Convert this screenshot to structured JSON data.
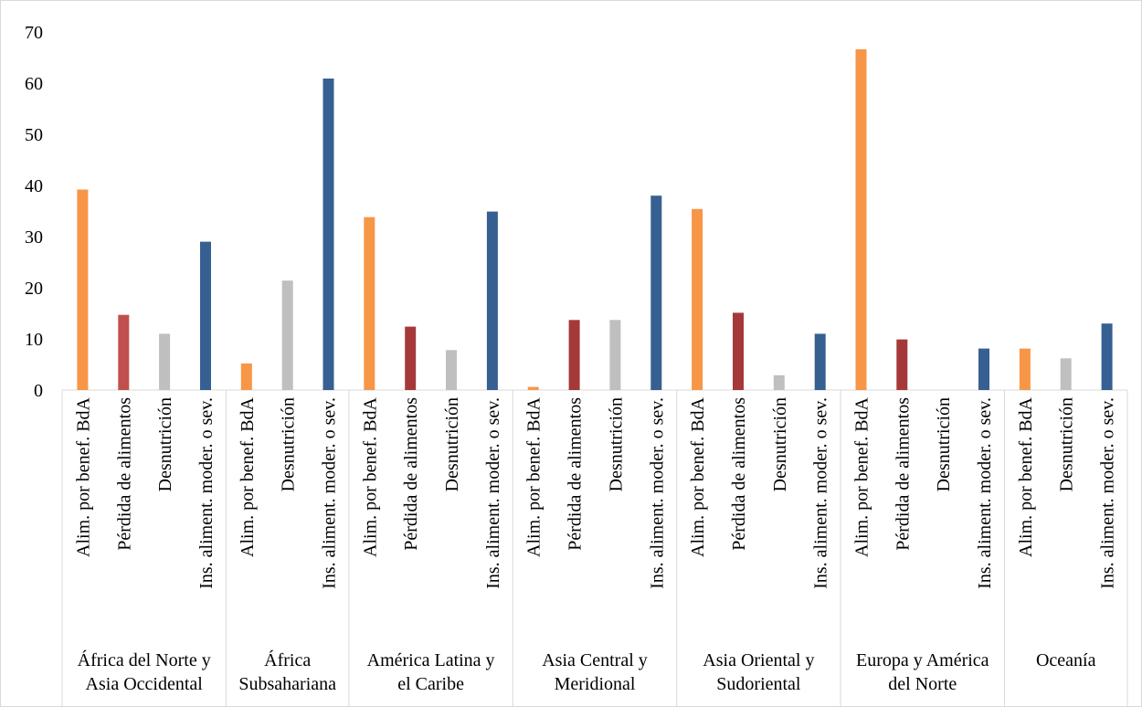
{
  "chart_data": {
    "type": "bar",
    "ylim": [
      0,
      70
    ],
    "yticks": [
      "0",
      "10",
      "20",
      "30",
      "40",
      "50",
      "60",
      "70"
    ],
    "grid": false,
    "legend": "none",
    "colors": {
      "Alim. por benef. BdA": "#f79646",
      "Pérdida de alimentos": "#a5393a",
      "Pérdida de alimentos (África del Norte)": "#c0504d",
      "Desnutrición": "#bfbfbf",
      "Ins. aliment. moder. o sev.": "#376092"
    },
    "groups": [
      {
        "label": [
          "África del Norte y",
          "Asia Occidental"
        ],
        "bars": [
          {
            "label": "Alim. por benef. BdA",
            "value": 39.2,
            "color": "#f79646"
          },
          {
            "label": "Pérdida de alimentos",
            "value": 14.7,
            "color": "#c0504d"
          },
          {
            "label": "Desnutrición",
            "value": 11.0,
            "color": "#bfbfbf"
          },
          {
            "label": "Ins. aliment. moder. o sev.",
            "value": 29.0,
            "color": "#376092"
          }
        ]
      },
      {
        "label": [
          "África",
          "Subsahariana"
        ],
        "bars": [
          {
            "label": "Alim. por benef. BdA",
            "value": 5.2,
            "color": "#f79646"
          },
          {
            "label": "Desnutrición",
            "value": 21.4,
            "color": "#bfbfbf"
          },
          {
            "label": "Ins. aliment. moder. o sev.",
            "value": 60.9,
            "color": "#376092"
          }
        ]
      },
      {
        "label": [
          "América Latina y",
          "el Caribe"
        ],
        "bars": [
          {
            "label": "Alim. por benef. BdA",
            "value": 33.8,
            "color": "#f79646"
          },
          {
            "label": "Pérdida de alimentos",
            "value": 12.4,
            "color": "#a5393a"
          },
          {
            "label": "Desnutrición",
            "value": 7.8,
            "color": "#bfbfbf"
          },
          {
            "label": "Ins. aliment. moder. o sev.",
            "value": 34.9,
            "color": "#376092"
          }
        ]
      },
      {
        "label": [
          "Asia Central y",
          "Meridional"
        ],
        "bars": [
          {
            "label": "Alim. por benef. BdA",
            "value": 0.6,
            "color": "#f79646"
          },
          {
            "label": "Pérdida de alimentos",
            "value": 13.7,
            "color": "#a5393a"
          },
          {
            "label": "Desnutrición",
            "value": 13.7,
            "color": "#bfbfbf"
          },
          {
            "label": "Ins. aliment. moder. o sev.",
            "value": 38.0,
            "color": "#376092"
          }
        ]
      },
      {
        "label": [
          "Asia Oriental y",
          "Sudoriental"
        ],
        "bars": [
          {
            "label": "Alim. por benef. BdA",
            "value": 35.4,
            "color": "#f79646"
          },
          {
            "label": "Pérdida de alimentos",
            "value": 15.1,
            "color": "#a5393a"
          },
          {
            "label": "Desnutrición",
            "value": 2.9,
            "color": "#bfbfbf"
          },
          {
            "label": "Ins. aliment. moder. o sev.",
            "value": 11.0,
            "color": "#376092"
          }
        ]
      },
      {
        "label": [
          "Europa y América",
          "del Norte"
        ],
        "bars": [
          {
            "label": "Alim. por benef. BdA",
            "value": 66.6,
            "color": "#f79646"
          },
          {
            "label": "Pérdida de alimentos",
            "value": 9.9,
            "color": "#a5393a"
          },
          {
            "label": "Desnutrición",
            "value": 0,
            "color": "#bfbfbf"
          },
          {
            "label": "Ins. aliment. moder. o sev.",
            "value": 8.1,
            "color": "#376092"
          }
        ]
      },
      {
        "label": [
          "Oceanía"
        ],
        "bars": [
          {
            "label": "Alim. por benef. BdA",
            "value": 8.1,
            "color": "#f79646"
          },
          {
            "label": "Desnutrición",
            "value": 6.2,
            "color": "#bfbfbf"
          },
          {
            "label": "Ins. aliment. moder. o sev.",
            "value": 13.0,
            "color": "#376092"
          }
        ]
      }
    ]
  }
}
